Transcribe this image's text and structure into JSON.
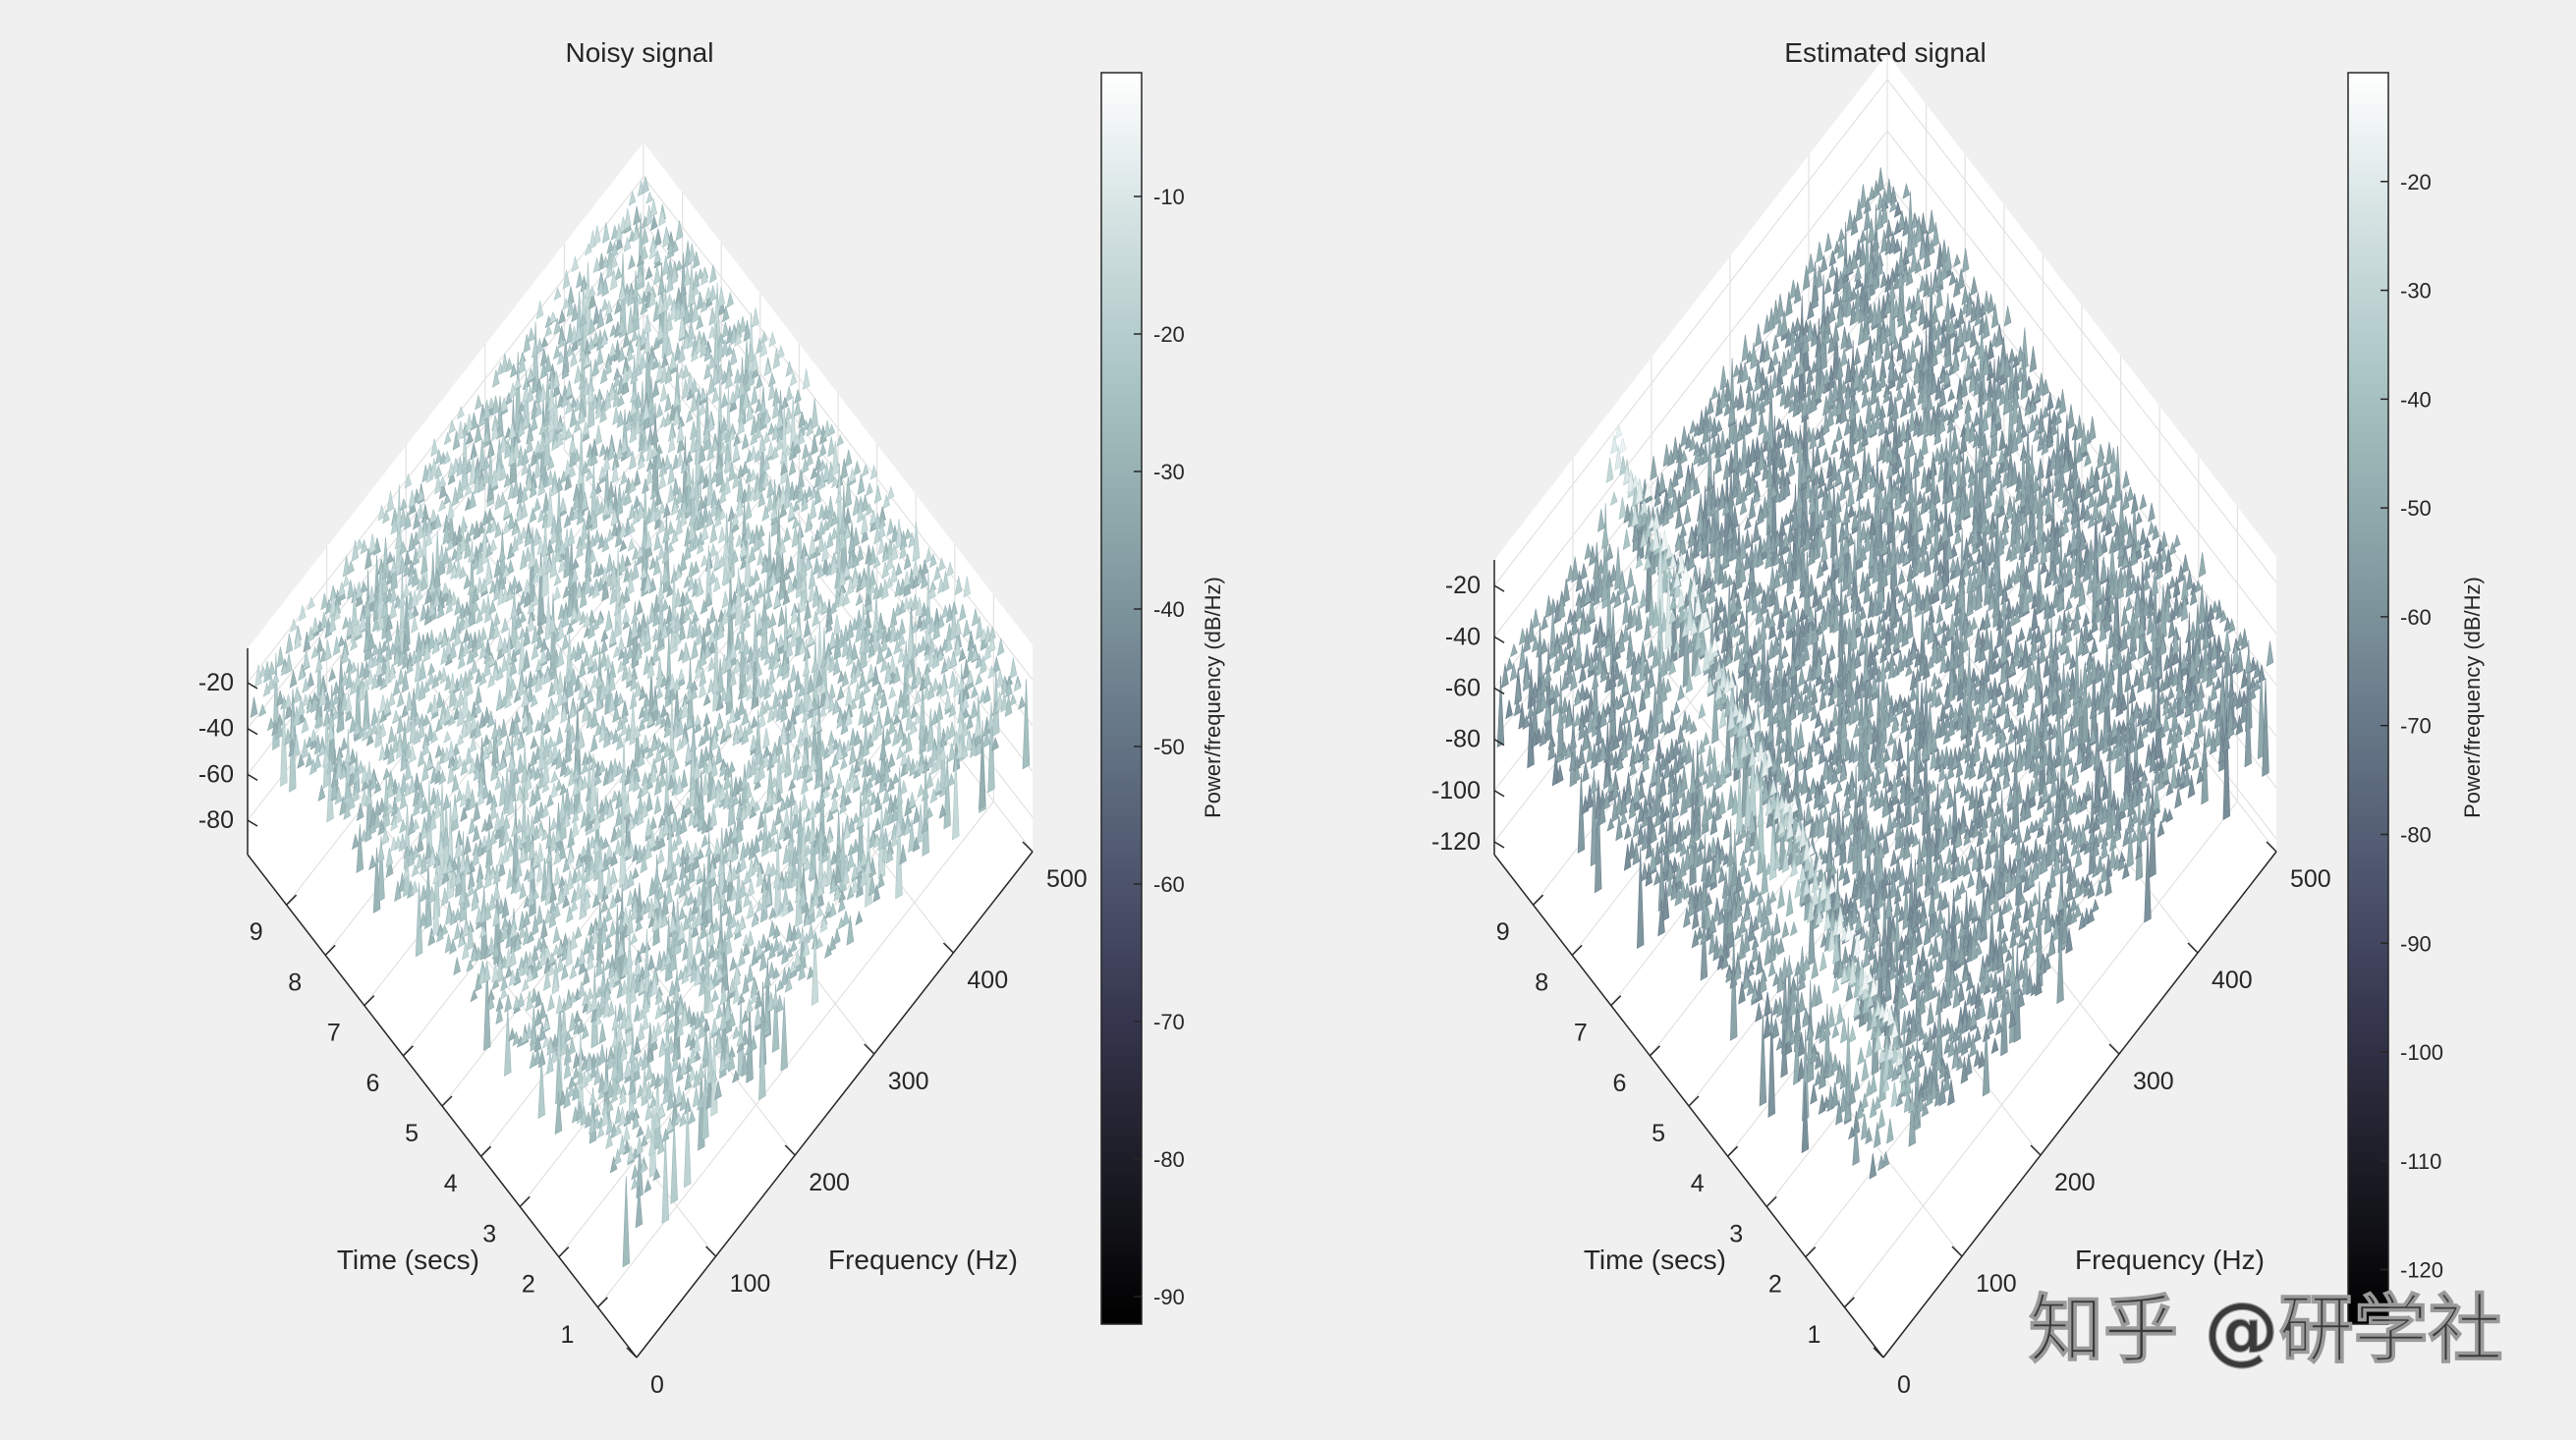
{
  "colors": {
    "background": "#f0f0f0",
    "axes_text": "#262626",
    "colormap": "bone",
    "watermark": "#ffffff"
  },
  "chart_data": [
    {
      "type": "surface",
      "title": "Noisy signal",
      "xlabel": "Frequency (Hz)",
      "ylabel": "Time (secs)",
      "zlabel": "",
      "x_ticks": [
        "0",
        "100",
        "200",
        "300",
        "400",
        "500"
      ],
      "y_ticks": [
        "1",
        "2",
        "3",
        "4",
        "5",
        "6",
        "7",
        "8",
        "9"
      ],
      "z_ticks": [
        "-20",
        "-40",
        "-60",
        "-80"
      ],
      "xlim": [
        0,
        500
      ],
      "ylim": [
        0,
        10
      ],
      "zlim": [
        -95,
        -5
      ],
      "colorbar": {
        "label": "Power/frequency (dB/Hz)",
        "ticks": [
          "-10",
          "-20",
          "-30",
          "-40",
          "-50",
          "-60",
          "-70",
          "-80",
          "-90"
        ],
        "range": [
          -92,
          -1
        ]
      },
      "surface": {
        "description_level_db": -22,
        "noise_spread_db": 12,
        "chirp": false
      }
    },
    {
      "type": "surface",
      "title": "Estimated signal",
      "xlabel": "Frequency (Hz)",
      "ylabel": "Time (secs)",
      "zlabel": "",
      "x_ticks": [
        "0",
        "100",
        "200",
        "300",
        "400",
        "500"
      ],
      "y_ticks": [
        "1",
        "2",
        "3",
        "4",
        "5",
        "6",
        "7",
        "8",
        "9"
      ],
      "z_ticks": [
        "-20",
        "-40",
        "-60",
        "-80",
        "-100",
        "-120"
      ],
      "xlim": [
        0,
        500
      ],
      "ylim": [
        0,
        10
      ],
      "zlim": [
        -125,
        -10
      ],
      "colorbar": {
        "label": "Power/frequency (dB/Hz)",
        "ticks": [
          "-20",
          "-30",
          "-40",
          "-50",
          "-60",
          "-70",
          "-80",
          "-90",
          "-100",
          "-110",
          "-120"
        ],
        "range": [
          -125,
          -10
        ]
      },
      "surface": {
        "description_level_db": -55,
        "noise_spread_db": 10,
        "chirp": true
      }
    }
  ],
  "watermark": {
    "text": "知乎 @研学社"
  }
}
